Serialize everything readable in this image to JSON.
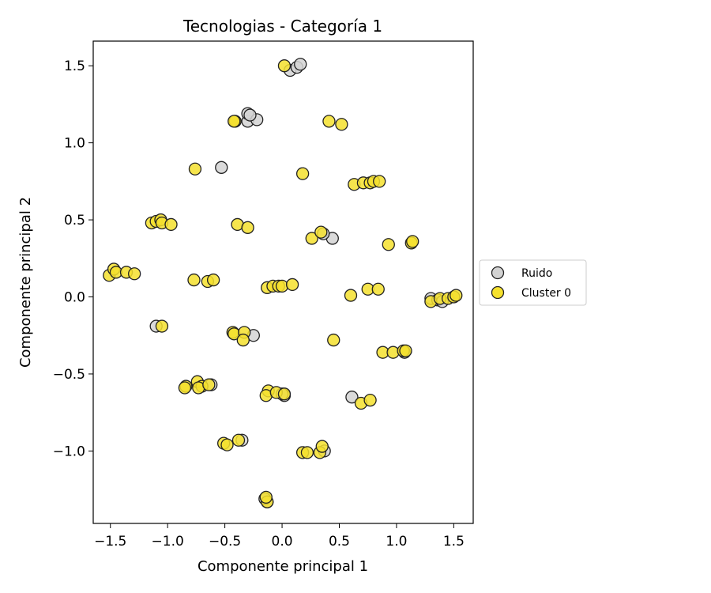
{
  "chart_data": {
    "type": "scatter",
    "title": "Tecnologias - Categoría 1",
    "xlabel": "Componente principal 1",
    "ylabel": "Componente principal 2",
    "xlim": [
      -1.65,
      1.67
    ],
    "ylim": [
      -1.47,
      1.66
    ],
    "xticks": [
      "−1.5",
      "−1.0",
      "−0.5",
      "0.0",
      "0.5",
      "1.0",
      "1.5"
    ],
    "xtick_values": [
      -1.5,
      -1.0,
      -0.5,
      0.0,
      0.5,
      1.0,
      1.5
    ],
    "yticks": [
      "1.5",
      "1.0",
      "0.5",
      "0.0",
      "−0.5",
      "−1.0"
    ],
    "ytick_values": [
      1.5,
      1.0,
      0.5,
      0.0,
      -0.5,
      -1.0
    ],
    "grid": false,
    "legend_position": "outside-right",
    "series": [
      {
        "name": "Ruido",
        "color": "#d3d3d3",
        "edge": "#222222",
        "points": [
          [
            0.07,
            1.47
          ],
          [
            0.13,
            1.49
          ],
          [
            0.16,
            1.51
          ],
          [
            -0.3,
            1.14
          ],
          [
            -0.3,
            1.19
          ],
          [
            -0.22,
            1.15
          ],
          [
            -0.28,
            1.18
          ],
          [
            -0.53,
            0.84
          ],
          [
            0.44,
            0.38
          ],
          [
            0.36,
            0.41
          ],
          [
            -1.1,
            -0.19
          ],
          [
            -0.25,
            -0.25
          ],
          [
            0.61,
            -0.65
          ],
          [
            0.02,
            -0.64
          ],
          [
            0.0,
            -0.63
          ],
          [
            -0.62,
            -0.57
          ],
          [
            -0.35,
            -0.93
          ],
          [
            0.37,
            -1.0
          ],
          [
            -0.13,
            -1.33
          ],
          [
            -0.15,
            -1.31
          ],
          [
            1.3,
            -0.01
          ],
          [
            1.36,
            -0.02
          ],
          [
            1.4,
            -0.03
          ],
          [
            1.07,
            -0.36
          ]
        ]
      },
      {
        "name": "Cluster 0",
        "color": "#f5e12e",
        "edge": "#222222",
        "points": [
          [
            0.02,
            1.5
          ],
          [
            -0.41,
            1.14
          ],
          [
            -0.42,
            1.14
          ],
          [
            0.41,
            1.14
          ],
          [
            0.52,
            1.12
          ],
          [
            -0.76,
            0.83
          ],
          [
            0.18,
            0.8
          ],
          [
            0.63,
            0.73
          ],
          [
            0.71,
            0.74
          ],
          [
            0.77,
            0.74
          ],
          [
            0.8,
            0.75
          ],
          [
            0.85,
            0.75
          ],
          [
            -1.14,
            0.48
          ],
          [
            -1.1,
            0.49
          ],
          [
            -1.06,
            0.5
          ],
          [
            -1.05,
            0.48
          ],
          [
            -0.97,
            0.47
          ],
          [
            -0.39,
            0.47
          ],
          [
            -0.3,
            0.45
          ],
          [
            0.26,
            0.38
          ],
          [
            0.34,
            0.42
          ],
          [
            0.93,
            0.34
          ],
          [
            1.13,
            0.35
          ],
          [
            1.14,
            0.36
          ],
          [
            -1.51,
            0.14
          ],
          [
            -1.47,
            0.18
          ],
          [
            -1.45,
            0.16
          ],
          [
            -1.36,
            0.16
          ],
          [
            -1.29,
            0.15
          ],
          [
            -0.77,
            0.11
          ],
          [
            -0.65,
            0.1
          ],
          [
            -0.6,
            0.11
          ],
          [
            -0.13,
            0.06
          ],
          [
            -0.08,
            0.07
          ],
          [
            -0.03,
            0.07
          ],
          [
            0.0,
            0.07
          ],
          [
            0.09,
            0.08
          ],
          [
            0.6,
            0.01
          ],
          [
            0.75,
            0.05
          ],
          [
            0.84,
            0.05
          ],
          [
            1.3,
            -0.03
          ],
          [
            1.38,
            -0.01
          ],
          [
            1.45,
            -0.01
          ],
          [
            1.5,
            0.0
          ],
          [
            1.52,
            0.01
          ],
          [
            -1.05,
            -0.19
          ],
          [
            -0.43,
            -0.23
          ],
          [
            -0.42,
            -0.24
          ],
          [
            -0.33,
            -0.23
          ],
          [
            -0.34,
            -0.28
          ],
          [
            0.45,
            -0.28
          ],
          [
            0.88,
            -0.36
          ],
          [
            0.97,
            -0.36
          ],
          [
            1.06,
            -0.35
          ],
          [
            1.08,
            -0.35
          ],
          [
            -0.84,
            -0.58
          ],
          [
            -0.85,
            -0.59
          ],
          [
            -0.74,
            -0.55
          ],
          [
            -0.7,
            -0.58
          ],
          [
            -0.73,
            -0.59
          ],
          [
            -0.64,
            -0.57
          ],
          [
            -0.12,
            -0.61
          ],
          [
            -0.14,
            -0.64
          ],
          [
            -0.05,
            -0.62
          ],
          [
            0.02,
            -0.63
          ],
          [
            0.69,
            -0.69
          ],
          [
            0.77,
            -0.67
          ],
          [
            -0.51,
            -0.95
          ],
          [
            -0.48,
            -0.96
          ],
          [
            -0.38,
            -0.93
          ],
          [
            0.18,
            -1.01
          ],
          [
            0.22,
            -1.01
          ],
          [
            0.33,
            -1.01
          ],
          [
            0.35,
            -0.97
          ],
          [
            -0.13,
            -1.33
          ],
          [
            -0.14,
            -1.3
          ]
        ]
      }
    ]
  }
}
